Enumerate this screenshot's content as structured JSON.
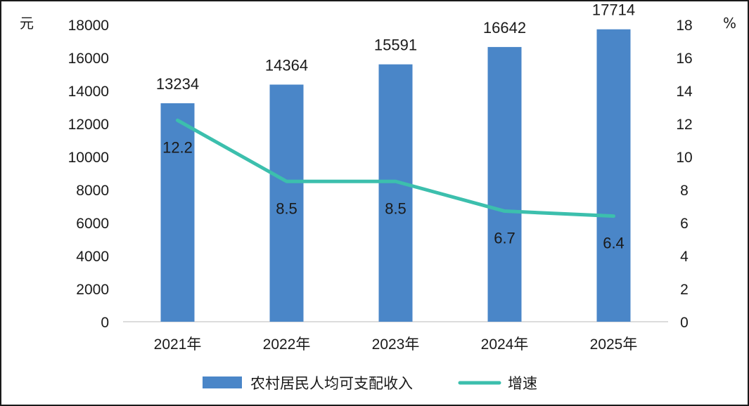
{
  "chart_data": {
    "type": "bar",
    "categories": [
      "2021年",
      "2022年",
      "2023年",
      "2024年",
      "2025年"
    ],
    "series": [
      {
        "name": "农村居民人均可支配收入",
        "type": "bar",
        "axis": "left",
        "values": [
          13234,
          14364,
          15591,
          16642,
          17714
        ],
        "color": "#4a86c8"
      },
      {
        "name": "增速",
        "type": "line",
        "axis": "right",
        "values": [
          12.2,
          8.5,
          8.5,
          6.7,
          6.4
        ],
        "color": "#3cbfad"
      }
    ],
    "y_left": {
      "unit": "元",
      "min": 0,
      "max": 18000,
      "ticks": [
        0,
        2000,
        4000,
        6000,
        8000,
        10000,
        12000,
        14000,
        16000,
        18000
      ]
    },
    "y_right": {
      "unit": "%",
      "min": 0,
      "max": 18,
      "ticks": [
        0,
        2,
        4,
        6,
        8,
        10,
        12,
        14,
        16,
        18
      ]
    },
    "grid": false,
    "legend": "bottom-center",
    "bar_labels": [
      "13234",
      "14364",
      "15591",
      "16642",
      "17714"
    ],
    "line_labels": [
      "12.2",
      "8.5",
      "8.5",
      "6.7",
      "6.4"
    ]
  }
}
